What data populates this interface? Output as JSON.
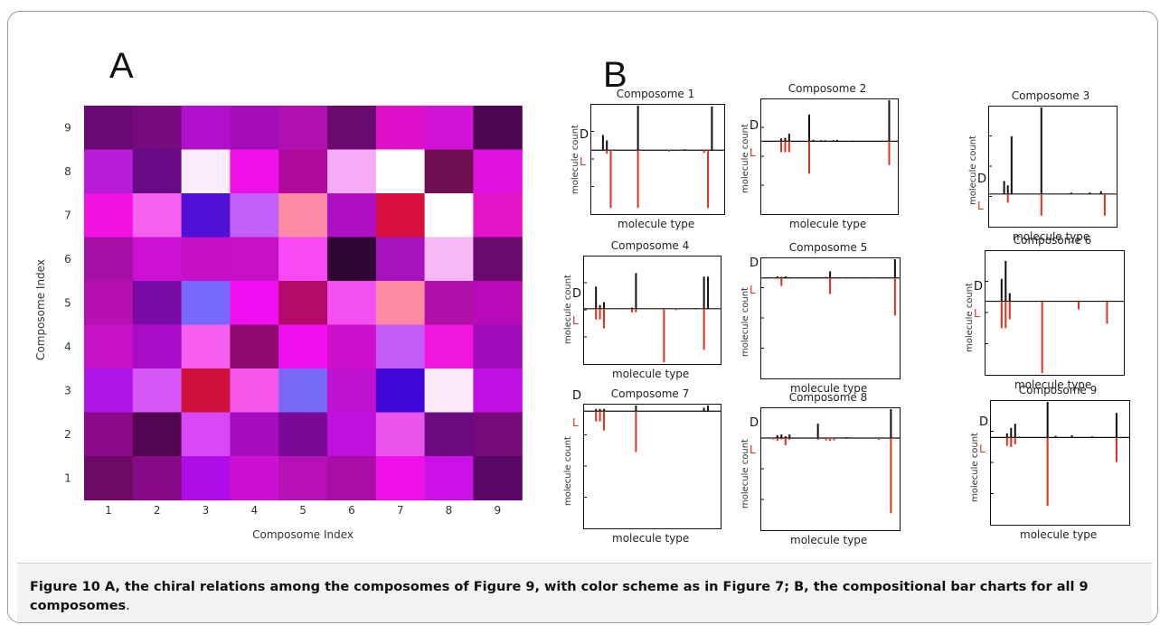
{
  "figure": {
    "panel_a_letter": "A",
    "panel_b_letter": "B",
    "caption_bold": "Figure 10 A, the chiral relations among the composomes of Figure 9, with color scheme as in Figure 7; B, the compositional bar charts for all 9 composomes",
    "caption_rest": "."
  },
  "chart_data": [
    {
      "type": "heatmap",
      "xlabel": "Composome Index",
      "ylabel": "Composome Index",
      "x_ticks": [
        "1",
        "2",
        "3",
        "4",
        "5",
        "6",
        "7",
        "8",
        "9"
      ],
      "y_ticks": [
        "1",
        "2",
        "3",
        "4",
        "5",
        "6",
        "7",
        "8",
        "9"
      ],
      "colors_top_to_bottom": [
        [
          "#6a0a73",
          "#780a7f",
          "#b010cc",
          "#a40cb8",
          "#b010b0",
          "#6a0a6e",
          "#e010c8",
          "#d214d8",
          "#4e0650"
        ],
        [
          "#b81ad8",
          "#680a86",
          "#fbeefa",
          "#f010e8",
          "#b00a9c",
          "#f7aaf5",
          "#ffffff",
          "#700e54",
          "#e010e0"
        ],
        [
          "#f212e2",
          "#f560f0",
          "#5010d6",
          "#c060f8",
          "#fd8aa4",
          "#b010c4",
          "#d8103e",
          "#ffffff",
          "#e614c8"
        ],
        [
          "#a610a8",
          "#cc10d4",
          "#c610c8",
          "#c810c6",
          "#f84af4",
          "#2e0632",
          "#a812bc",
          "#f8b8f6",
          "#6a0a70"
        ],
        [
          "#b810b0",
          "#7a0aa6",
          "#7868fa",
          "#f210f2",
          "#b40a6a",
          "#f450f0",
          "#fd8aa0",
          "#b010a8",
          "#b80ab8"
        ],
        [
          "#c810c8",
          "#a80cc6",
          "#f75ef0",
          "#8e0a72",
          "#f010f0",
          "#cc10cc",
          "#c45af8",
          "#f016e0",
          "#a00cbc"
        ],
        [
          "#b014e8",
          "#d656f6",
          "#d0103a",
          "#f656ec",
          "#7868f8",
          "#c010d0",
          "#4008d8",
          "#fbeafa",
          "#c010e4"
        ],
        [
          "#8c0a8a",
          "#520652",
          "#d848f4",
          "#a80cc0",
          "#7a0a96",
          "#c010e0",
          "#ec52ec",
          "#6c0a80",
          "#760a7a"
        ],
        [
          "#6e0a66",
          "#860a86",
          "#b00ce8",
          "#cc10d2",
          "#b810b8",
          "#aa0ca6",
          "#f010e8",
          "#cc10e8",
          "#5a0664"
        ]
      ]
    },
    {
      "type": "bar",
      "title": "Composome 1",
      "xlabel": "molecule type",
      "ylabel": "molecule count",
      "series": [
        {
          "name": "D",
          "values": [
            0,
            0,
            0.34,
            0.22,
            0,
            0,
            0,
            0,
            0,
            0,
            0,
            1.0,
            0,
            0,
            0,
            0,
            0,
            0,
            0,
            0,
            0,
            0,
            0,
            0.02,
            0,
            0,
            0,
            0,
            0,
            0,
            0.98,
            0,
            0
          ]
        },
        {
          "name": "L",
          "values": [
            0,
            0,
            0,
            -0.08,
            -1.3,
            0,
            0,
            0,
            0,
            0,
            0,
            -1.3,
            0,
            0,
            0,
            0,
            0,
            0,
            0,
            -0.03,
            0,
            0,
            0,
            0,
            0,
            0,
            0,
            0,
            -0.06,
            -1.3,
            0,
            0,
            0
          ]
        }
      ]
    },
    {
      "type": "bar",
      "title": "Composome 2",
      "xlabel": "molecule type",
      "ylabel": "molecule count",
      "series": [
        {
          "name": "D",
          "values": [
            0,
            0,
            0,
            0,
            0.08,
            0.1,
            0.22,
            0,
            0,
            0,
            0,
            0.78,
            0.04,
            0,
            0.03,
            0.03,
            0,
            0.03,
            0.04,
            0,
            0,
            0,
            0.02,
            0,
            0,
            0,
            0,
            0,
            0,
            0,
            0,
            1.2,
            0
          ]
        },
        {
          "name": "L",
          "values": [
            0,
            0,
            0,
            0,
            -0.32,
            -0.32,
            -0.32,
            0,
            0,
            0,
            0,
            -0.95,
            0,
            0,
            0,
            0,
            0,
            0,
            0,
            0,
            0,
            0,
            0,
            0,
            0,
            0,
            0,
            0,
            0,
            0,
            0,
            -0.7,
            0
          ]
        }
      ]
    },
    {
      "type": "bar",
      "title": "Composome 3",
      "xlabel": "molecule type",
      "ylabel": "molecule count",
      "series": [
        {
          "name": "D",
          "values": [
            0,
            0,
            0,
            0.18,
            0.12,
            0.8,
            0,
            0,
            0,
            0,
            0,
            0,
            0,
            1.2,
            0,
            0,
            0,
            0,
            0,
            0,
            0,
            0.02,
            0,
            0,
            0,
            0,
            0.02,
            0,
            0,
            0.04,
            0,
            0,
            0
          ]
        },
        {
          "name": "L",
          "values": [
            0,
            0,
            0,
            0,
            -0.12,
            0,
            0,
            0,
            0,
            0,
            0,
            0,
            0,
            -0.3,
            0,
            0,
            0,
            0,
            0,
            0,
            0,
            0,
            0,
            0,
            0,
            0,
            0,
            0,
            0,
            0,
            -0.3,
            0,
            0
          ]
        }
      ]
    },
    {
      "type": "bar",
      "title": "Composome 4",
      "xlabel": "molecule type",
      "ylabel": "molecule count",
      "series": [
        {
          "name": "D",
          "values": [
            0,
            0,
            0.62,
            0.1,
            0.18,
            0,
            0,
            0,
            0,
            0,
            0,
            0.03,
            1.0,
            0,
            0,
            0,
            0,
            0,
            0,
            0,
            0,
            0,
            0,
            0,
            0,
            0,
            0,
            0.02,
            0,
            0.9,
            0.9,
            0,
            0
          ]
        },
        {
          "name": "L",
          "values": [
            0,
            0,
            -0.3,
            -0.3,
            -0.55,
            0,
            0,
            0,
            0,
            0,
            0,
            -0.1,
            -0.1,
            0,
            0,
            0,
            -0.02,
            0,
            0,
            -1.5,
            0,
            0,
            -0.04,
            0,
            0,
            0,
            0,
            0,
            0,
            -1.15,
            0,
            0,
            0
          ]
        }
      ]
    },
    {
      "type": "bar",
      "title": "Composome 5",
      "xlabel": "molecule type",
      "ylabel": "molecule count",
      "series": [
        {
          "name": "D",
          "values": [
            0,
            0,
            0,
            0.12,
            0.08,
            0.12,
            0.05,
            0,
            0,
            0,
            0,
            0,
            0,
            0,
            0.05,
            0.08,
            0.5,
            0,
            0.05,
            0,
            0.02,
            0,
            0,
            0,
            0,
            0,
            0,
            0,
            0,
            0,
            0,
            0,
            1.4
          ]
        },
        {
          "name": "L",
          "values": [
            0,
            0,
            -0.05,
            -0.05,
            -0.6,
            0,
            0,
            0,
            0,
            0,
            0,
            0,
            0,
            0,
            0,
            -0.05,
            -1.2,
            0,
            -0.05,
            -0.04,
            0,
            -0.05,
            0,
            -0.05,
            0,
            0,
            0,
            -0.04,
            0,
            0,
            0,
            0,
            -2.8
          ]
        }
      ]
    },
    {
      "type": "bar",
      "title": "Composome 6",
      "xlabel": "molecule type",
      "ylabel": "molecule count",
      "series": [
        {
          "name": "D",
          "values": [
            0,
            0,
            0,
            0.5,
            0.9,
            0.18,
            0,
            0,
            0,
            0,
            0,
            0,
            0,
            0,
            0,
            0,
            0,
            0,
            0,
            0,
            0,
            0,
            0,
            0,
            0,
            0,
            0,
            0,
            0,
            0,
            0,
            0,
            0
          ]
        },
        {
          "name": "L",
          "values": [
            0,
            0,
            0,
            -0.6,
            -0.6,
            -0.4,
            0,
            0,
            0,
            0,
            0,
            0,
            0,
            -1.6,
            0,
            0,
            0,
            0,
            0,
            0,
            0,
            0,
            -0.18,
            0,
            0,
            0,
            0,
            0,
            0,
            -0.5,
            0,
            0,
            0
          ]
        }
      ]
    },
    {
      "type": "bar",
      "title": "Composome 7",
      "xlabel": "molecule type",
      "ylabel": "molecule count",
      "series": [
        {
          "name": "D",
          "values": [
            0,
            0,
            0.2,
            0.2,
            0.2,
            0,
            0,
            0,
            0,
            0,
            0,
            0,
            0.5,
            0,
            0,
            0,
            0,
            0,
            0,
            0,
            0,
            0,
            0,
            0,
            0,
            0,
            0,
            0,
            0,
            0.3,
            0.5,
            0,
            0
          ]
        },
        {
          "name": "L",
          "values": [
            0,
            0,
            -0.9,
            -0.9,
            -1.7,
            0,
            0,
            0,
            0,
            0,
            0,
            0,
            -3.6,
            0,
            0,
            0,
            0,
            0,
            0,
            0,
            0,
            0,
            0,
            0,
            0,
            0,
            0,
            0,
            0,
            0,
            0,
            0,
            0
          ]
        }
      ]
    },
    {
      "type": "bar",
      "title": "Composome 8",
      "xlabel": "molecule type",
      "ylabel": "molecule count",
      "series": [
        {
          "name": "D",
          "values": [
            0,
            0,
            0,
            0.1,
            0.12,
            0.06,
            0.12,
            0,
            0,
            0,
            0,
            0,
            0,
            0.5,
            0,
            0,
            0,
            0,
            0,
            0,
            0.03,
            0,
            0,
            0,
            0,
            0,
            0,
            0,
            0,
            0,
            0,
            1.0,
            0
          ]
        },
        {
          "name": "L",
          "values": [
            0,
            0,
            -0.05,
            -0.1,
            -0.05,
            -0.25,
            -0.06,
            0,
            0,
            0,
            0,
            0,
            0,
            -0.06,
            0,
            -0.08,
            -0.1,
            -0.08,
            0,
            0,
            0,
            0,
            0,
            0,
            0,
            0,
            0,
            0,
            -0.06,
            0,
            0,
            -2.6,
            0
          ]
        }
      ]
    },
    {
      "type": "bar",
      "title": "Composome 9",
      "xlabel": "molecule type",
      "ylabel": "molecule count",
      "series": [
        {
          "name": "D",
          "values": [
            0,
            0,
            0,
            0.15,
            0.35,
            0.5,
            0.03,
            0,
            0,
            0,
            0,
            0,
            0,
            1.3,
            0,
            0.06,
            0,
            0,
            0,
            0.08,
            0,
            0,
            0,
            0,
            0.04,
            0,
            0,
            0,
            0,
            0,
            0.9,
            0,
            0
          ]
        },
        {
          "name": "L",
          "values": [
            0,
            0,
            0,
            -0.3,
            -0.35,
            -0.25,
            0,
            0,
            0,
            0,
            0,
            0,
            0,
            -2.5,
            0,
            0,
            0,
            0,
            0,
            0,
            0,
            0,
            0,
            0,
            0,
            0,
            0,
            0,
            0,
            0,
            -0.9,
            0,
            0
          ]
        }
      ]
    }
  ]
}
